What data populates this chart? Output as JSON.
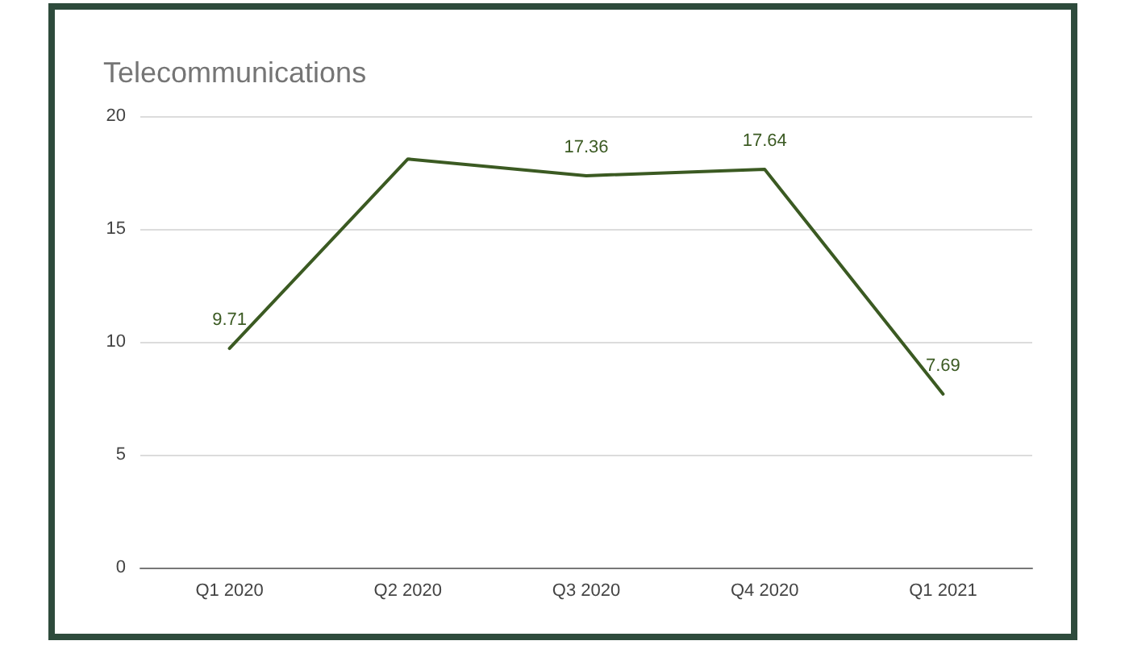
{
  "chart_data": {
    "type": "line",
    "title": "Telecommunications",
    "categories": [
      "Q1 2020",
      "Q2 2020",
      "Q3 2020",
      "Q4 2020",
      "Q1 2021"
    ],
    "values": [
      9.71,
      18.1,
      17.36,
      17.64,
      7.69
    ],
    "color": "#3b5a22",
    "value_labels": [
      "9.71",
      null,
      "17.36",
      "17.64",
      "7.69"
    ],
    "ylim": [
      0,
      20
    ],
    "yticks": [
      0,
      5,
      10,
      15,
      20
    ],
    "grid": "y",
    "marker": "none",
    "line_style": "solid"
  }
}
